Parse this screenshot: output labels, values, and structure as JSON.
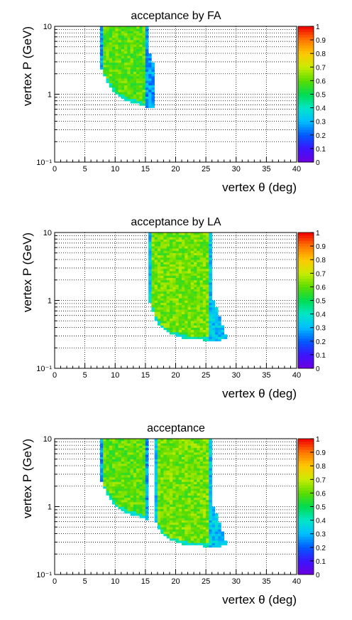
{
  "chart_data": [
    {
      "type": "heatmap",
      "title": "acceptance by FA",
      "xlabel": "vertex θ (deg)",
      "ylabel": "vertex P (GeV)",
      "xlim": [
        0,
        40
      ],
      "ylim": [
        0.1,
        10
      ],
      "y_scale": "log",
      "grid": true,
      "x_ticks": [
        "0",
        "5",
        "10",
        "15",
        "20",
        "25",
        "30",
        "35",
        "40"
      ],
      "y_ticks": [
        "10",
        "1",
        "10⁻¹"
      ],
      "z_ticks": [
        "0",
        "0.1",
        "0.2",
        "0.3",
        "0.4",
        "0.5",
        "0.6",
        "0.7",
        "0.8",
        "0.9",
        "1"
      ],
      "zlim": [
        0,
        1
      ],
      "palette": "rainbow",
      "regions": [
        {
          "name": "FA",
          "theta_min": 7.6,
          "theta_max": 15.4,
          "p_max": 10,
          "p_min_at_theta": [
            [
              7.6,
              2.5
            ],
            [
              8.5,
              1.6
            ],
            [
              10,
              1.0
            ],
            [
              12,
              0.8
            ],
            [
              14,
              0.7
            ],
            [
              15.4,
              0.65
            ],
            [
              16.6,
              0.62
            ]
          ],
          "right_tail_theta": 16.6,
          "right_tail_p_top": 5.0,
          "typical_acceptance": 0.6,
          "edge_acceptance": 0.2
        }
      ]
    },
    {
      "type": "heatmap",
      "title": "acceptance by LA",
      "xlabel": "vertex θ (deg)",
      "ylabel": "vertex P (GeV)",
      "xlim": [
        0,
        40
      ],
      "ylim": [
        0.1,
        10
      ],
      "y_scale": "log",
      "grid": true,
      "x_ticks": [
        "0",
        "5",
        "10",
        "15",
        "20",
        "25",
        "30",
        "35",
        "40"
      ],
      "y_ticks": [
        "10",
        "1",
        "10⁻¹"
      ],
      "z_ticks": [
        "0",
        "0.1",
        "0.2",
        "0.3",
        "0.4",
        "0.5",
        "0.6",
        "0.7",
        "0.8",
        "0.9",
        "1"
      ],
      "zlim": [
        0,
        1
      ],
      "palette": "rainbow",
      "regions": [
        {
          "name": "LA",
          "theta_min": 15.6,
          "theta_max": 26.0,
          "p_max": 10,
          "p_min_at_theta": [
            [
              15.6,
              1.0
            ],
            [
              17,
              0.45
            ],
            [
              19,
              0.32
            ],
            [
              22,
              0.27
            ],
            [
              25,
              0.26
            ],
            [
              27,
              0.26
            ],
            [
              29.5,
              0.27
            ]
          ],
          "right_tail_theta": 29.5,
          "right_tail_p_top": 1.2,
          "typical_acceptance": 0.62,
          "edge_acceptance": 0.25
        }
      ]
    },
    {
      "type": "heatmap",
      "title": "acceptance",
      "xlabel": "vertex θ (deg)",
      "ylabel": "vertex P (GeV)",
      "xlim": [
        0,
        40
      ],
      "ylim": [
        0.1,
        10
      ],
      "y_scale": "log",
      "grid": true,
      "x_ticks": [
        "0",
        "5",
        "10",
        "15",
        "20",
        "25",
        "30",
        "35",
        "40"
      ],
      "y_ticks": [
        "10",
        "1",
        "10⁻¹"
      ],
      "z_ticks": [
        "0",
        "0.1",
        "0.2",
        "0.3",
        "0.4",
        "0.5",
        "0.6",
        "0.7",
        "0.8",
        "0.9",
        "1"
      ],
      "zlim": [
        0,
        1
      ],
      "palette": "rainbow",
      "regions": [
        {
          "name": "FA",
          "theta_min": 7.6,
          "theta_max": 15.4,
          "p_max": 10,
          "p_min_at_theta": [
            [
              7.6,
              2.5
            ],
            [
              8.5,
              1.6
            ],
            [
              10,
              1.0
            ],
            [
              12,
              0.8
            ],
            [
              14,
              0.7
            ],
            [
              15.4,
              0.65
            ]
          ],
          "right_tail_theta": 15.4,
          "right_tail_p_top": 10,
          "typical_acceptance": 0.6,
          "edge_acceptance": 0.2
        },
        {
          "name": "LA",
          "theta_min": 16.4,
          "theta_max": 26.0,
          "p_max": 10,
          "p_min_at_theta": [
            [
              16.4,
              0.7
            ],
            [
              17.5,
              0.42
            ],
            [
              19,
              0.32
            ],
            [
              22,
              0.27
            ],
            [
              25,
              0.26
            ],
            [
              27,
              0.26
            ],
            [
              29.5,
              0.27
            ]
          ],
          "right_tail_theta": 29.5,
          "right_tail_p_top": 1.2,
          "typical_acceptance": 0.62,
          "edge_acceptance": 0.25
        }
      ]
    }
  ]
}
